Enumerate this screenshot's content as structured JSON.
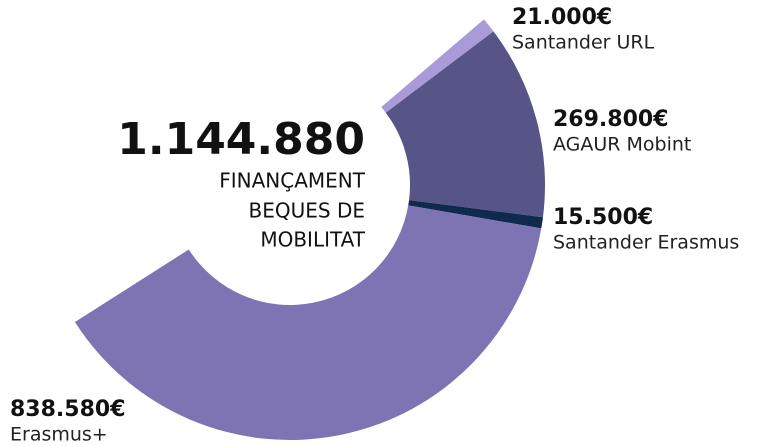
{
  "chart_data": {
    "type": "donut",
    "categories": [
      "Erasmus+",
      "Santander Erasmus",
      "AGAUR Mobint",
      "Santander URL"
    ],
    "values": [
      838580,
      15500,
      269800,
      21000
    ],
    "value_labels": [
      "838.580€",
      "15.500€",
      "269.800€",
      "21.000€"
    ],
    "colors": [
      "#7f74b3",
      "#0f2a4d",
      "#575488",
      "#a99bd8"
    ],
    "total_label": "1.144.880",
    "center_text": [
      "FINANÇAMENT",
      "BEQUES DE",
      "MOBILITAT"
    ]
  }
}
